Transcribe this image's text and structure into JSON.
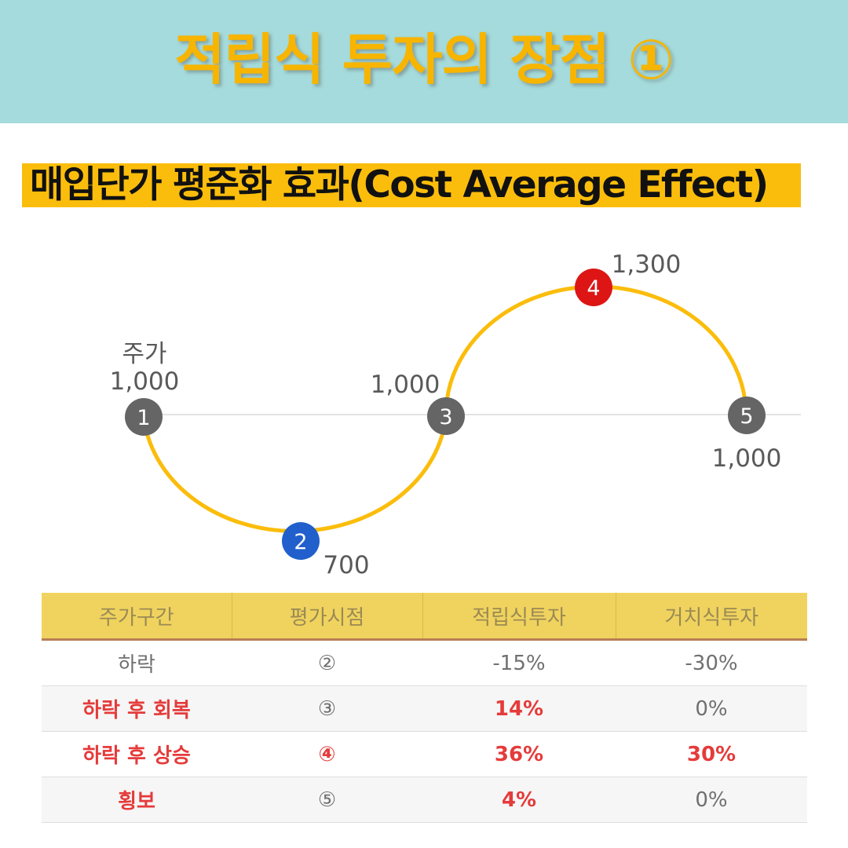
{
  "header": {
    "title": "적립식 투자의 장점 ①"
  },
  "subtitle": "매입단가 평준화 효과(Cost Average Effect)",
  "diagram": {
    "price_label": "주가",
    "points": [
      {
        "marker": "1",
        "value": "1,000"
      },
      {
        "marker": "2",
        "value": "700"
      },
      {
        "marker": "3",
        "value": "1,000"
      },
      {
        "marker": "4",
        "value": "1,300"
      },
      {
        "marker": "5",
        "value": "1,000"
      }
    ],
    "colors": {
      "curve": "#fbbd0c",
      "marker_default": "#656565",
      "marker_low": "#2160cc",
      "marker_high": "#dd1515"
    }
  },
  "table": {
    "headers": [
      "주가구간",
      "평가시점",
      "적립식투자",
      "거치식투자"
    ],
    "rows": [
      [
        "하락",
        "②",
        "-15%",
        "-30%"
      ],
      [
        "하락 후 회복",
        "③",
        "14%",
        "0%"
      ],
      [
        "하락 후 상승",
        "④",
        "36%",
        "30%"
      ],
      [
        "횡보",
        "⑤",
        "4%",
        "0%"
      ]
    ]
  }
}
